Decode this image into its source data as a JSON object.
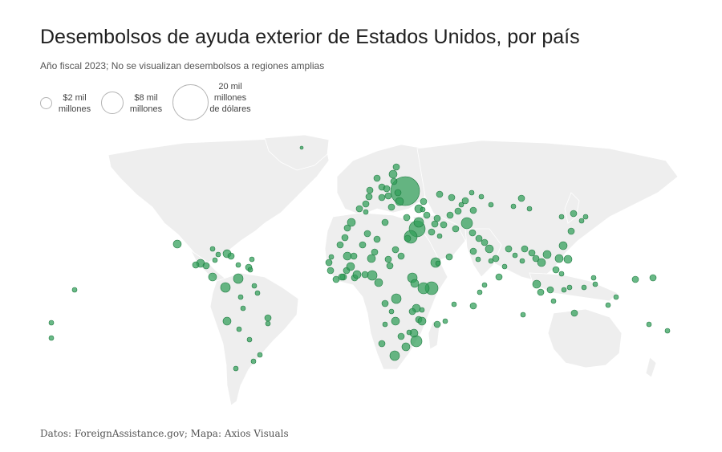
{
  "title": "Desembolsos de ayuda exterior de Estados Unidos, por país",
  "subtitle": "Año fiscal 2023; No se visualizan desembolsos a regiones amplias",
  "legend": {
    "small": "$2 mil millones",
    "medium": "$8 mil millones",
    "large": "20 mil millones de dólares"
  },
  "source": "Datos: ForeignAssistance.gov; Mapa: Axios Visuals",
  "colors": {
    "land": "#eeeeee",
    "border": "#ffffff",
    "bubble": "#2f9e57",
    "bubble_stroke": "#1f7a41"
  },
  "map_style": "world proportional-symbol map, green bubbles sized by disbursement"
}
